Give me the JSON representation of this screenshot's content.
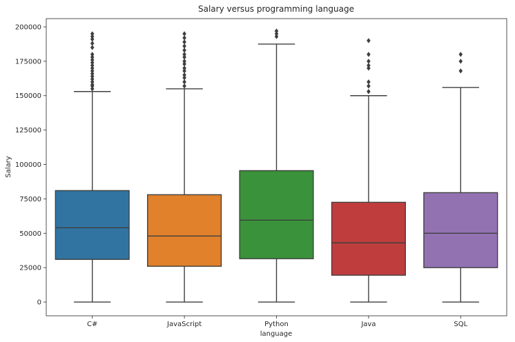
{
  "chart_data": {
    "type": "box",
    "title": "Salary versus programming language",
    "xlabel": "language",
    "ylabel": "Salary",
    "ylim": [
      -10000,
      206000
    ],
    "yticks": [
      0,
      25000,
      50000,
      75000,
      100000,
      125000,
      150000,
      175000,
      200000
    ],
    "yticklabels": [
      "0",
      "25000",
      "50000",
      "75000",
      "100000",
      "125000",
      "150000",
      "175000",
      "200000"
    ],
    "categories": [
      "C#",
      "JavaScript",
      "Python",
      "Java",
      "SQL"
    ],
    "grid": false,
    "boxes": [
      {
        "category": "C#",
        "color": "#3274a1",
        "min": 0,
        "q1": 31000,
        "median": 54000,
        "q3": 81000,
        "max": 153000,
        "outliers": [
          155000,
          157000,
          158000,
          160000,
          162000,
          164000,
          166000,
          168000,
          170000,
          172000,
          174000,
          176000,
          178000,
          180000,
          185000,
          188000,
          191000,
          193000,
          195000
        ]
      },
      {
        "category": "JavaScript",
        "color": "#e1812c",
        "min": 0,
        "q1": 26000,
        "median": 48000,
        "q3": 78000,
        "max": 155000,
        "outliers": [
          157000,
          160000,
          163000,
          165000,
          168000,
          170000,
          173000,
          175000,
          178000,
          180000,
          183000,
          186000,
          189000,
          192000,
          195000
        ]
      },
      {
        "category": "Python",
        "color": "#3a923a",
        "min": 0,
        "q1": 31500,
        "median": 59500,
        "q3": 95500,
        "max": 187500,
        "outliers": [
          193000,
          195000,
          197000
        ]
      },
      {
        "category": "Java",
        "color": "#c03d3e",
        "min": 0,
        "q1": 19500,
        "median": 43000,
        "q3": 72500,
        "max": 150000,
        "outliers": [
          153000,
          157000,
          160000,
          170000,
          172000,
          175000,
          180000,
          190000
        ]
      },
      {
        "category": "SQL",
        "color": "#9372b2",
        "min": 0,
        "q1": 25000,
        "median": 50000,
        "q3": 79500,
        "max": 156000,
        "outliers": [
          168000,
          175000,
          180000
        ]
      }
    ]
  }
}
